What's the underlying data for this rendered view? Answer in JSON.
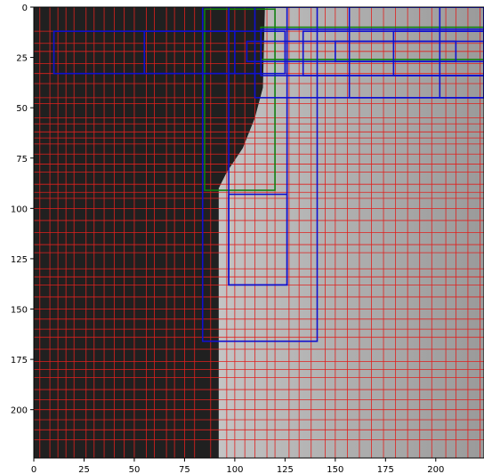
{
  "chart_data": {
    "type": "heatmap",
    "title": "",
    "xlabel": "",
    "ylabel": "",
    "xlim": [
      0,
      224
    ],
    "ylim": [
      224,
      0
    ],
    "x_ticks": [
      0,
      25,
      50,
      75,
      100,
      125,
      150,
      175,
      200
    ],
    "y_ticks": [
      0,
      25,
      50,
      75,
      100,
      125,
      150,
      175,
      200
    ],
    "grid": false,
    "background": {
      "description_free": true,
      "dark_region_color": "#202020",
      "light_region_color": "#bdbdbd",
      "boundary_points": [
        [
          115,
          0
        ],
        [
          114,
          40
        ],
        [
          110,
          55
        ],
        [
          104,
          70
        ],
        [
          96,
          82
        ],
        [
          92,
          90
        ],
        [
          92,
          224
        ]
      ]
    },
    "box_colors": {
      "red": "#e0201e",
      "blue": "#1010d0",
      "green": "#108010"
    },
    "blue_boxes": [
      [
        10,
        12,
        100,
        33
      ],
      [
        55,
        12,
        125,
        33
      ],
      [
        97,
        0,
        126,
        138
      ],
      [
        84,
        0,
        141,
        166
      ],
      [
        97,
        93,
        126,
        138
      ],
      [
        113,
        11,
        224,
        34
      ],
      [
        134,
        12,
        224,
        34
      ],
      [
        157,
        0,
        224,
        45
      ],
      [
        179,
        12,
        224,
        34
      ],
      [
        106,
        17,
        224,
        27
      ],
      [
        110,
        0,
        224,
        45
      ],
      [
        202,
        0,
        224,
        45
      ],
      [
        150,
        17,
        210,
        27
      ]
    ],
    "green_boxes": [
      [
        85,
        1,
        120,
        91
      ],
      [
        113,
        10,
        224,
        26
      ]
    ],
    "red_box_rows": [
      12,
      18,
      22,
      28,
      33,
      38,
      45,
      48,
      55,
      58,
      62,
      65,
      68,
      73,
      78,
      82,
      88,
      92,
      95,
      100,
      106,
      112,
      118,
      122,
      130,
      134,
      138,
      144,
      150,
      155,
      160,
      164,
      170,
      176,
      180,
      184,
      190,
      195,
      200,
      205,
      210,
      215
    ],
    "red_box_cols": [
      3,
      8,
      12,
      16,
      20,
      26,
      30,
      35,
      40,
      45,
      50,
      56,
      60,
      66,
      70,
      75,
      80,
      88,
      96,
      100,
      105,
      110,
      116,
      120,
      127,
      132,
      138,
      145,
      150,
      156,
      162,
      168,
      174,
      180,
      186,
      192,
      198,
      205,
      210,
      216,
      222
    ]
  }
}
